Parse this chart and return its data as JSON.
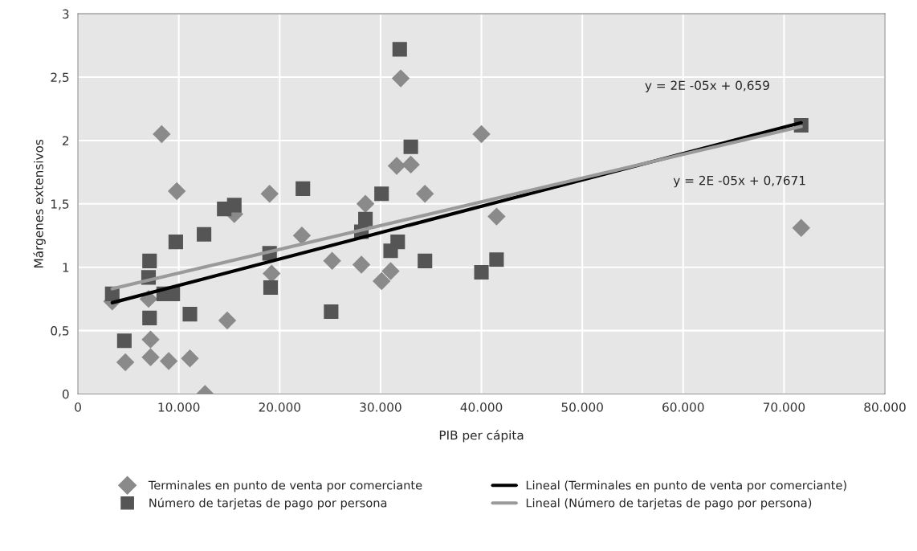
{
  "chart_data": {
    "type": "scatter",
    "xlabel": "PIB per cápita",
    "ylabel": "Márgenes extensivos",
    "xlim": [
      0,
      80000
    ],
    "ylim": [
      0,
      3
    ],
    "xticks": [
      0,
      {
        "value": 10000,
        "label": "10.000"
      },
      {
        "value": 20000,
        "label": "20.000"
      },
      {
        "value": 30000,
        "label": "30.000"
      },
      {
        "value": 40000,
        "label": "40.000"
      },
      {
        "value": 50000,
        "label": "50.000"
      },
      {
        "value": 60000,
        "label": "60.000"
      },
      {
        "value": 70000,
        "label": "70.000"
      },
      {
        "value": 80000,
        "label": "80.000"
      }
    ],
    "yticks": [
      0,
      {
        "value": 0.5,
        "label": "0,5"
      },
      1,
      {
        "value": 1.5,
        "label": "1,5"
      },
      2,
      {
        "value": 2.5,
        "label": "2,5"
      },
      3
    ],
    "grid": true,
    "legend": "bottom",
    "annotations": [
      "y = 2E -05x + 0,659",
      "y = 2E -05x + 0,7671"
    ],
    "series": [
      {
        "name": "Terminales en punto de venta por comerciante",
        "marker": "diamond",
        "color": "#8a8a8a",
        "x": [
          8300,
          9800,
          19000,
          15500,
          22200,
          19200,
          7000,
          3400,
          14800,
          7200,
          4700,
          7200,
          9000,
          11100,
          12600,
          32000,
          40000,
          31600,
          33000,
          34400,
          28500,
          41500,
          25200,
          28100,
          30100,
          31000,
          71700
        ],
        "values": [
          2.05,
          1.6,
          1.58,
          1.42,
          1.25,
          0.95,
          0.75,
          0.73,
          0.58,
          0.43,
          0.25,
          0.29,
          0.26,
          0.28,
          0.0,
          2.49,
          2.05,
          1.8,
          1.81,
          1.58,
          1.5,
          1.4,
          1.05,
          1.02,
          0.89,
          0.97,
          1.31
        ]
      },
      {
        "name": "Número de tarjetas de pago por persona",
        "marker": "square",
        "color": "#555555",
        "x": [
          3400,
          7100,
          7000,
          8500,
          9400,
          9700,
          12500,
          14500,
          15500,
          19000,
          19100,
          7100,
          11100,
          4600,
          22300,
          31900,
          33000,
          30100,
          28500,
          28100,
          31700,
          31000,
          34400,
          25100,
          40000,
          41500,
          71700
        ],
        "values": [
          0.79,
          1.05,
          0.92,
          0.79,
          0.79,
          1.2,
          1.26,
          1.46,
          1.49,
          1.11,
          0.84,
          0.6,
          0.63,
          0.42,
          1.62,
          2.72,
          1.95,
          1.58,
          1.38,
          1.28,
          1.2,
          1.13,
          1.05,
          0.65,
          0.96,
          1.06,
          2.12
        ]
      },
      {
        "name": "Lineal (Terminales en punto de venta por comerciante)",
        "type": "line",
        "color": "#000000",
        "x": [
          3400,
          71700
        ],
        "values": [
          0.72,
          2.14
        ]
      },
      {
        "name": "Lineal (Número de tarjetas de pago por persona)",
        "type": "line",
        "color": "#9a9a9a",
        "x": [
          3400,
          71700
        ],
        "values": [
          0.83,
          2.11
        ]
      }
    ]
  }
}
